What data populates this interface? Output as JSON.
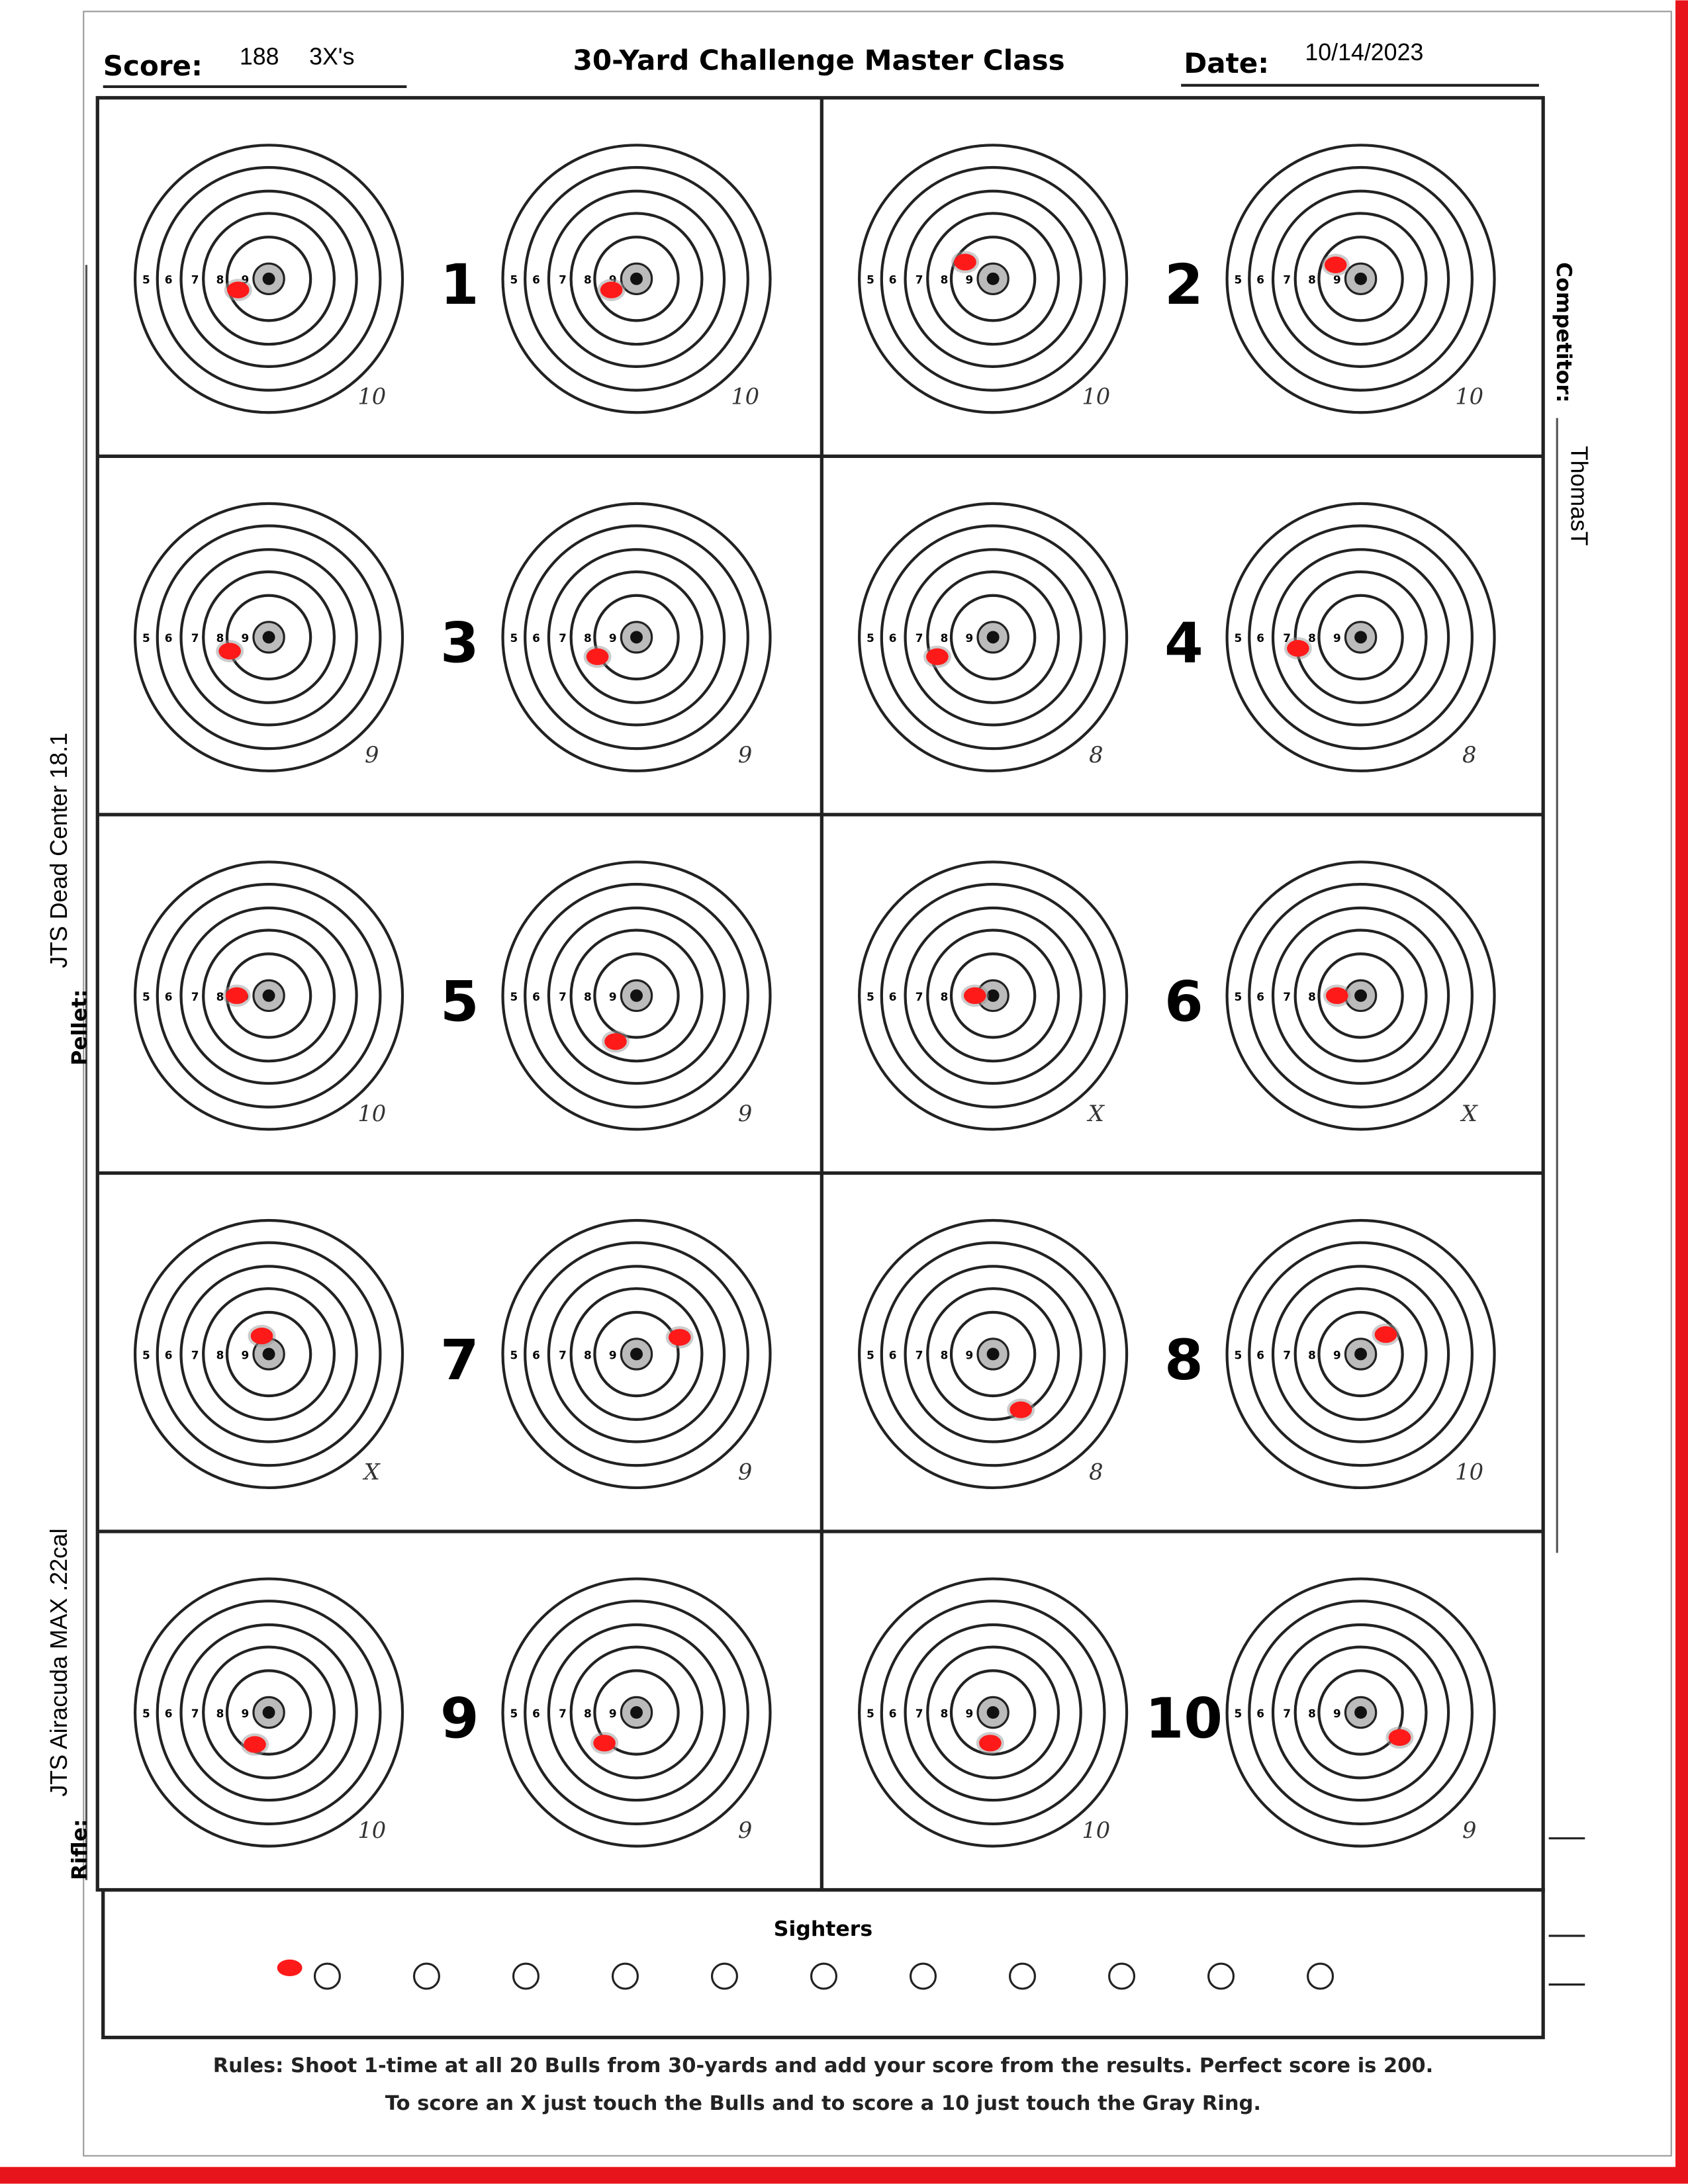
{
  "header": {
    "score_label": "Score:",
    "score": "188",
    "xs": "3X's",
    "title": "30-Yard Challenge Master Class",
    "date_label": "Date:",
    "date": "10/14/2023"
  },
  "side": {
    "competitor_label": "Competitor:",
    "competitor": "ThomasT",
    "pellet_label": "Pellet:",
    "pellet": "JTS Dead Center 18.1",
    "rifle_label": "Rifle:",
    "rifle": "JTS Airacuda MAX .22cal"
  },
  "ring_labels": [
    "5",
    "6",
    "7",
    "8",
    "9"
  ],
  "targets": [
    {
      "number": "1",
      "scores": [
        "10",
        "10"
      ]
    },
    {
      "number": "2",
      "scores": [
        "10",
        "10"
      ]
    },
    {
      "number": "3",
      "scores": [
        "9",
        "9"
      ]
    },
    {
      "number": "4",
      "scores": [
        "8",
        "8"
      ]
    },
    {
      "number": "5",
      "scores": [
        "10",
        "9"
      ]
    },
    {
      "number": "6",
      "scores": [
        "X",
        "X"
      ]
    },
    {
      "number": "7",
      "scores": [
        "X",
        "9"
      ]
    },
    {
      "number": "8",
      "scores": [
        "8",
        "10"
      ]
    },
    {
      "number": "9",
      "scores": [
        "10",
        "9"
      ]
    },
    {
      "number": "10",
      "scores": [
        "10",
        "9"
      ]
    }
  ],
  "sighters": {
    "label": "Sighters"
  },
  "rules": [
    "Rules: Shoot 1-time at all 20 Bulls from 30-yards and add your score from the results. Perfect score is 200.",
    "To score an X just touch the Bulls and to score a 10 just touch the Gray Ring."
  ]
}
